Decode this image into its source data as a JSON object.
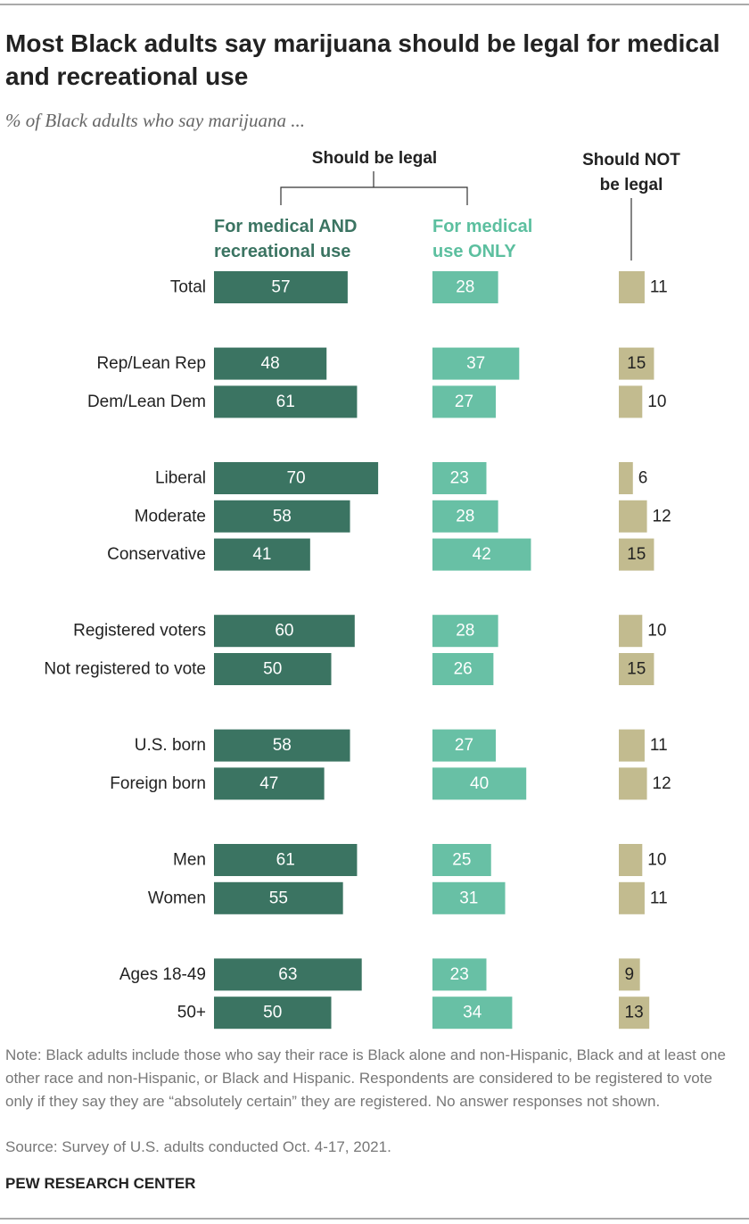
{
  "chart_data": {
    "type": "bar",
    "orientation": "horizontal",
    "title": "Most Black adults say marijuana should be legal for medical and recreational use",
    "subtitle": "% of Black adults who say marijuana ...",
    "group_label": "Should be legal",
    "categories": [
      "Total",
      null,
      "Rep/Lean Rep",
      "Dem/Lean Dem",
      null,
      "Liberal",
      "Moderate",
      "Conservative",
      null,
      "Registered voters",
      "Not registered to vote",
      null,
      "U.S. born",
      "Foreign born",
      null,
      "Men",
      "Women",
      null,
      "Ages 18-49",
      "50+"
    ],
    "series": [
      {
        "name": "For medical AND recreational use",
        "color": "#3b7462",
        "values": [
          57,
          null,
          48,
          61,
          null,
          70,
          58,
          41,
          null,
          60,
          50,
          null,
          58,
          47,
          null,
          61,
          55,
          null,
          63,
          50
        ]
      },
      {
        "name": "For medical use ONLY",
        "color": "#68c0a5",
        "values": [
          28,
          null,
          37,
          27,
          null,
          23,
          28,
          42,
          null,
          28,
          26,
          null,
          27,
          40,
          null,
          25,
          31,
          null,
          23,
          34
        ]
      },
      {
        "name": "Should NOT be legal",
        "color": "#c2bb8f",
        "values": [
          11,
          null,
          15,
          10,
          null,
          6,
          12,
          15,
          null,
          10,
          15,
          null,
          11,
          12,
          null,
          10,
          11,
          null,
          9,
          13
        ]
      }
    ],
    "note": "Note: Black adults include those who say their race is Black alone and non-Hispanic, Black and at least one other race and non-Hispanic, or Black and Hispanic. Respondents are considered to be registered to vote only if they say they are “absolutely certain” they are registered. No answer responses not shown.",
    "source": "Source: Survey of U.S. adults conducted Oct. 4-17, 2021.",
    "credit": "PEW RESEARCH CENTER"
  }
}
